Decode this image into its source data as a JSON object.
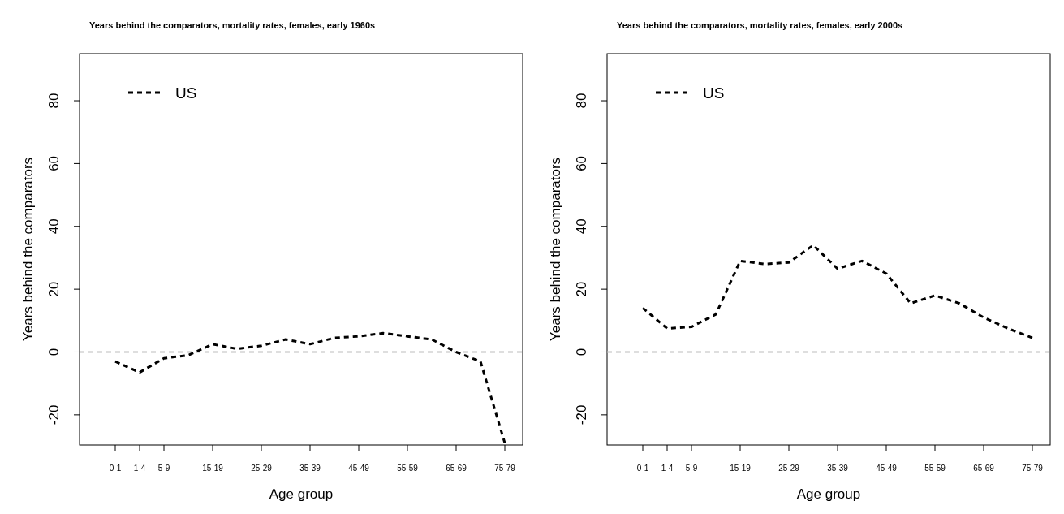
{
  "chart_data": [
    {
      "type": "line",
      "title": "Years behind the comparators, mortality rates, females, early 1960s",
      "xlabel": "Age group",
      "ylabel": "Years behind the comparators",
      "categories": [
        "0-1",
        "1-4",
        "5-9",
        null,
        "15-19",
        null,
        "25-29",
        null,
        "35-39",
        null,
        "45-49",
        null,
        "55-59",
        null,
        "65-69",
        null,
        "75-79"
      ],
      "series": [
        {
          "name": "US",
          "color": "#000000",
          "values": [
            -3,
            -6.5,
            -2,
            -1,
            2.5,
            1,
            2,
            4,
            2.5,
            4.5,
            5,
            6,
            5,
            4,
            0,
            -3,
            -29
          ]
        }
      ],
      "ylim": [
        -29.6,
        95
      ],
      "yticks": [
        -20,
        0,
        20,
        40,
        60,
        80
      ],
      "ref_lines": [
        {
          "axis": "y",
          "value": 0,
          "color": "#bebebe",
          "line_style": "dashed"
        }
      ],
      "legend": "top left",
      "line_style": "dashed",
      "marker": "none",
      "grid": false
    },
    {
      "type": "line",
      "title": "Years behind the comparators, mortality rates, females, early 2000s",
      "xlabel": "Age group",
      "ylabel": "Years behind the comparators",
      "categories": [
        "0-1",
        "1-4",
        "5-9",
        null,
        "15-19",
        null,
        "25-29",
        null,
        "35-39",
        null,
        "45-49",
        null,
        "55-59",
        null,
        "65-69",
        null,
        "75-79"
      ],
      "series": [
        {
          "name": "US",
          "color": "#000000",
          "values": [
            14,
            7.5,
            8,
            12,
            29,
            28,
            28.5,
            34,
            26.5,
            29,
            25,
            15.5,
            18,
            15.5,
            11,
            7.5,
            4.5
          ]
        }
      ],
      "ylim": [
        -29.6,
        95
      ],
      "yticks": [
        -20,
        0,
        20,
        40,
        60,
        80
      ],
      "ref_lines": [
        {
          "axis": "y",
          "value": 0,
          "color": "#bebebe",
          "line_style": "dashed"
        }
      ],
      "legend": "top left",
      "line_style": "dashed",
      "marker": "none",
      "grid": false
    }
  ]
}
